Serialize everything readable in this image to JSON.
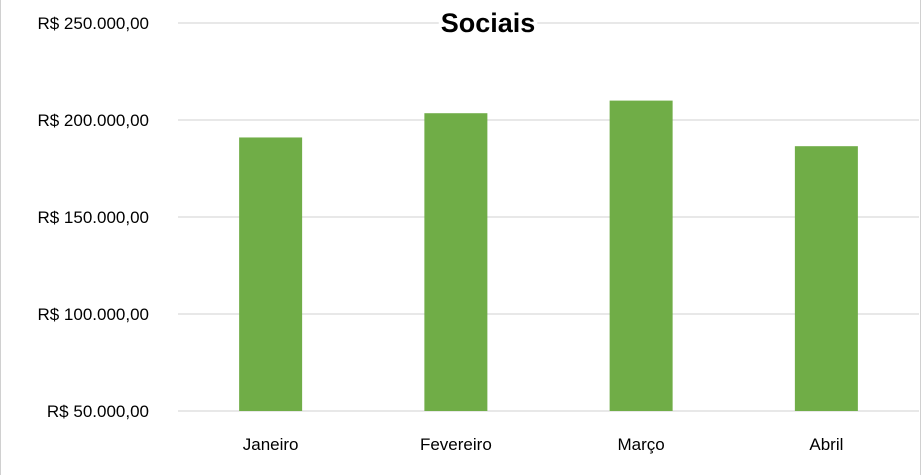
{
  "chart_data": {
    "type": "bar",
    "title": "Sociais",
    "categories": [
      "Janeiro",
      "Fevereiro",
      "Março",
      "Abril"
    ],
    "series": [
      {
        "values": [
          191000,
          203500,
          210000,
          186500
        ],
        "color": "#70ad47"
      }
    ],
    "ylim": [
      50000,
      250000
    ],
    "yticks": [
      50000,
      100000,
      150000,
      200000,
      250000
    ],
    "ytick_labels": [
      "R$ 50.000,00",
      "R$ 100.000,00",
      "R$ 150.000,00",
      "R$ 200.000,00",
      "R$ 250.000,00"
    ],
    "xlabel": "",
    "ylabel": "",
    "grid": true,
    "gridline_color": "#d9d9d9",
    "legend": "none"
  }
}
